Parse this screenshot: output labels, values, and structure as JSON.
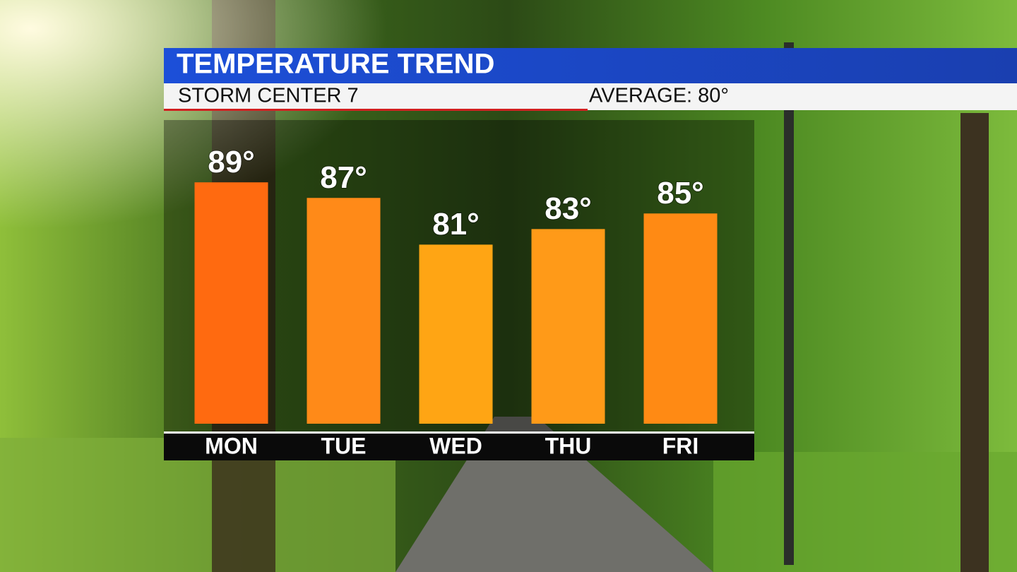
{
  "chart_data": {
    "type": "bar",
    "title": "TEMPERATURE TREND",
    "subtitle": "STORM CENTER 7",
    "annotation": "AVERAGE: 80°",
    "categories": [
      "MON",
      "TUE",
      "WED",
      "THU",
      "FRI"
    ],
    "values": [
      89,
      87,
      81,
      83,
      85
    ],
    "value_labels": [
      "89°",
      "87°",
      "81°",
      "83°",
      "85°"
    ],
    "colors": [
      "#ff6a10",
      "#ff8a18",
      "#ffa514",
      "#ff9a18",
      "#ff8a14"
    ],
    "ylim": [
      58,
      97
    ]
  }
}
